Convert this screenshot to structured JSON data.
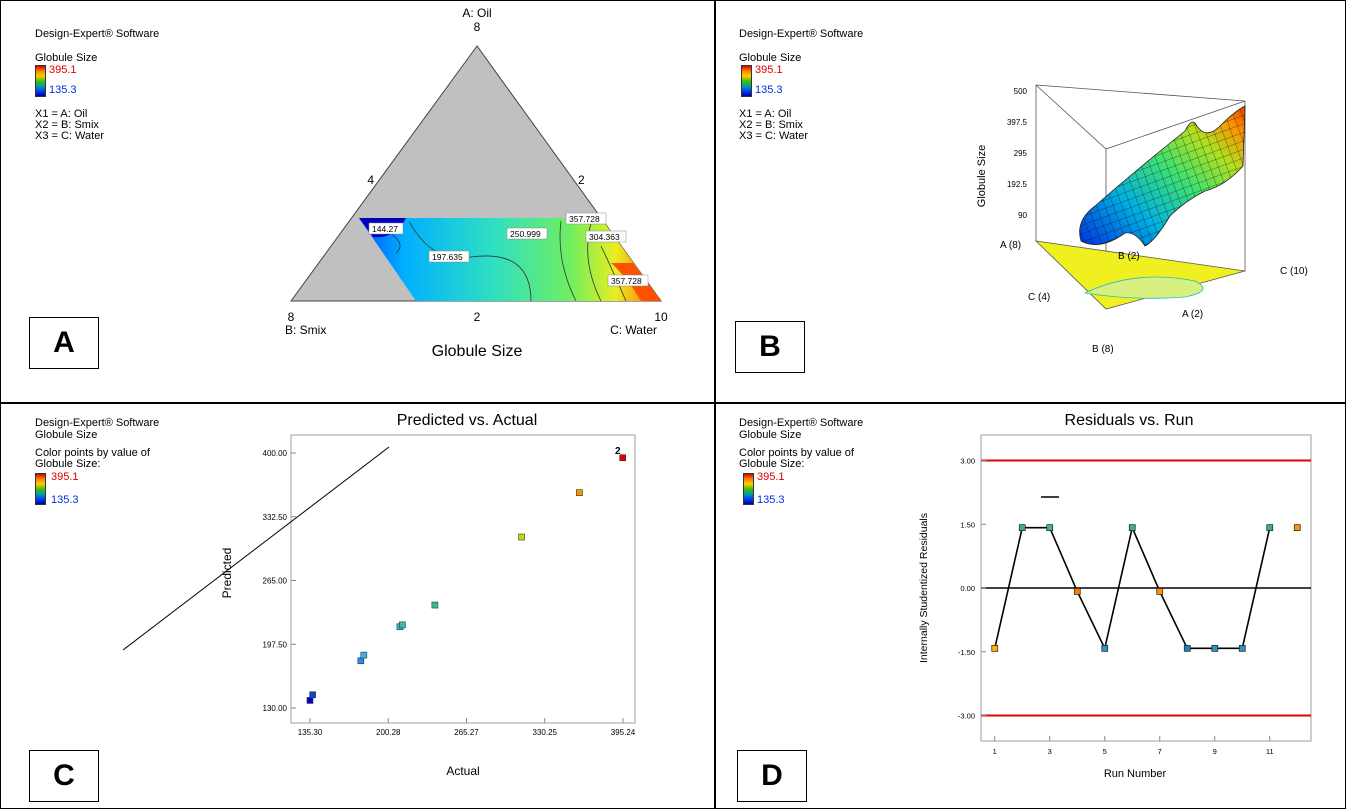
{
  "common": {
    "software": "Design-Expert® Software",
    "response": "Globule Size",
    "legend_high": "395.1",
    "legend_low": "135.3",
    "x1": "X1 = A: Oil",
    "x2": "X2 = B: Smix",
    "x3": "X3 = C: Water",
    "color_note_1": "Color points by value of",
    "color_note_2": "Globule Size:"
  },
  "panel_a": {
    "tag": "A",
    "top_label": "A: Oil",
    "top_value": "8",
    "left_mid": "4",
    "right_mid": "2",
    "bottom_left_value": "8",
    "bottom_left_label": "B: Smix",
    "bottom_mid": "2",
    "bottom_right_value": "10",
    "bottom_right_label": "C: Water",
    "title": "Globule Size",
    "contours": [
      "144.27",
      "197.635",
      "250.999",
      "304.363",
      "357.728",
      "357.728"
    ]
  },
  "panel_b": {
    "tag": "B",
    "z_label": "Globule Size",
    "z_ticks": [
      "500",
      "397.5",
      "295",
      "192.5",
      "90"
    ],
    "axis_labels": [
      "A (8)",
      "B (2)",
      "C (10)",
      "C (4)",
      "A (2)",
      "B (8)"
    ]
  },
  "panel_c": {
    "tag": "C",
    "ylabel_text": "Predicted",
    "xlabel_text": "Actual",
    "point_label": "2"
  },
  "panel_d": {
    "tag": "D",
    "ylabel_text": "Internally Studentized Residuals",
    "xlabel_text": "Run Number"
  },
  "chart_data": [
    {
      "type": "scatter",
      "title": "Predicted vs. Actual",
      "xlabel": "Actual",
      "ylabel": "Predicted",
      "xlim": [
        135.3,
        395.24
      ],
      "ylim": [
        130.0,
        400.0
      ],
      "x_ticks": [
        "135.30",
        "200.28",
        "265.27",
        "330.25",
        "395.24"
      ],
      "y_ticks": [
        "130.00",
        "197.50",
        "265.00",
        "332.50",
        "400.00"
      ],
      "points": [
        {
          "x": 135.3,
          "y": 138,
          "color": "#0000c8"
        },
        {
          "x": 137.5,
          "y": 144,
          "color": "#1040e0"
        },
        {
          "x": 177.5,
          "y": 180,
          "color": "#2090f0"
        },
        {
          "x": 180,
          "y": 186,
          "color": "#40b0f0"
        },
        {
          "x": 210,
          "y": 216,
          "color": "#30c0c0"
        },
        {
          "x": 212,
          "y": 218,
          "color": "#30c0b0"
        },
        {
          "x": 239,
          "y": 239,
          "color": "#30c090"
        },
        {
          "x": 311,
          "y": 311,
          "color": "#c0e000"
        },
        {
          "x": 359,
          "y": 358,
          "color": "#ff9000"
        },
        {
          "x": 395,
          "y": 395,
          "color": "#e00000"
        }
      ]
    },
    {
      "type": "line",
      "title": "Residuals vs. Run",
      "xlabel": "Run Number",
      "ylabel": "Internally Studentized Residuals",
      "xlim": [
        0.5,
        12.5
      ],
      "ylim": [
        -3.6,
        3.6
      ],
      "x_ticks": [
        "1",
        "3",
        "5",
        "7",
        "9",
        "11"
      ],
      "y_ticks": [
        "3.00",
        "1.50",
        "0.00",
        "-1.50",
        "-3.00"
      ],
      "limit_lines": [
        3.0,
        -3.0
      ],
      "series": [
        {
          "values": [
            -1.42,
            1.42,
            1.42,
            -0.08,
            -1.42,
            1.42,
            -0.08,
            -1.42,
            -1.42,
            -1.42,
            1.42,
            1.42
          ]
        }
      ]
    }
  ]
}
